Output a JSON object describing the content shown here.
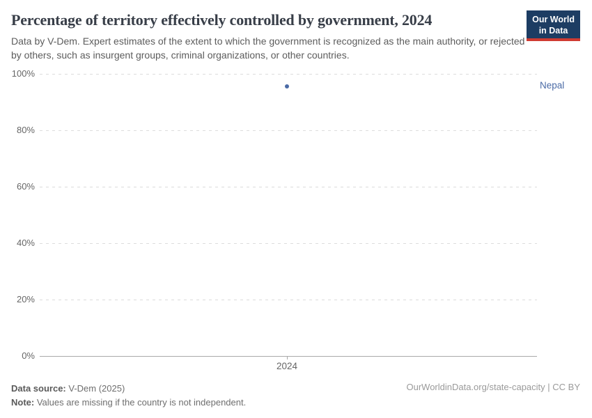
{
  "header": {
    "title": "Percentage of territory effectively controlled by government, 2024",
    "subtitle": "Data by V-Dem. Expert estimates of the extent to which the government is recognized as the main authority, or rejected by others, such as insurgent groups, criminal organizations, or other countries.",
    "logo": {
      "line1": "Our World",
      "line2": "in Data",
      "bg_color": "#1d3d63",
      "accent_color": "#cf3b32"
    }
  },
  "chart_data": {
    "type": "scatter",
    "title": "Percentage of territory effectively controlled by government, 2024",
    "x": [
      2024
    ],
    "series": [
      {
        "name": "Nepal",
        "values": [
          95.5
        ],
        "color": "#4b6ba6"
      }
    ],
    "xlabel": "",
    "ylabel": "",
    "ylim": [
      0,
      100
    ],
    "yticks": [
      {
        "value": 0,
        "label": "0%"
      },
      {
        "value": 20,
        "label": "20%"
      },
      {
        "value": 40,
        "label": "40%"
      },
      {
        "value": 60,
        "label": "60%"
      },
      {
        "value": 80,
        "label": "80%"
      },
      {
        "value": 100,
        "label": "100%"
      }
    ],
    "xticks": [
      {
        "value": 2024,
        "label": "2024"
      }
    ],
    "grid": "horizontal-dashed",
    "legend_position": "right-entity-label",
    "gridline_color": "#dcdcdc",
    "axis_line_color": "#a8a8a8",
    "tick_label_color": "#666666"
  },
  "footer": {
    "data_source_label": "Data source:",
    "data_source_value": "V-Dem (2025)",
    "note_label": "Note:",
    "note_value": "Values are missing if the country is not independent.",
    "link": "OurWorldinData.org/state-capacity | CC BY"
  }
}
